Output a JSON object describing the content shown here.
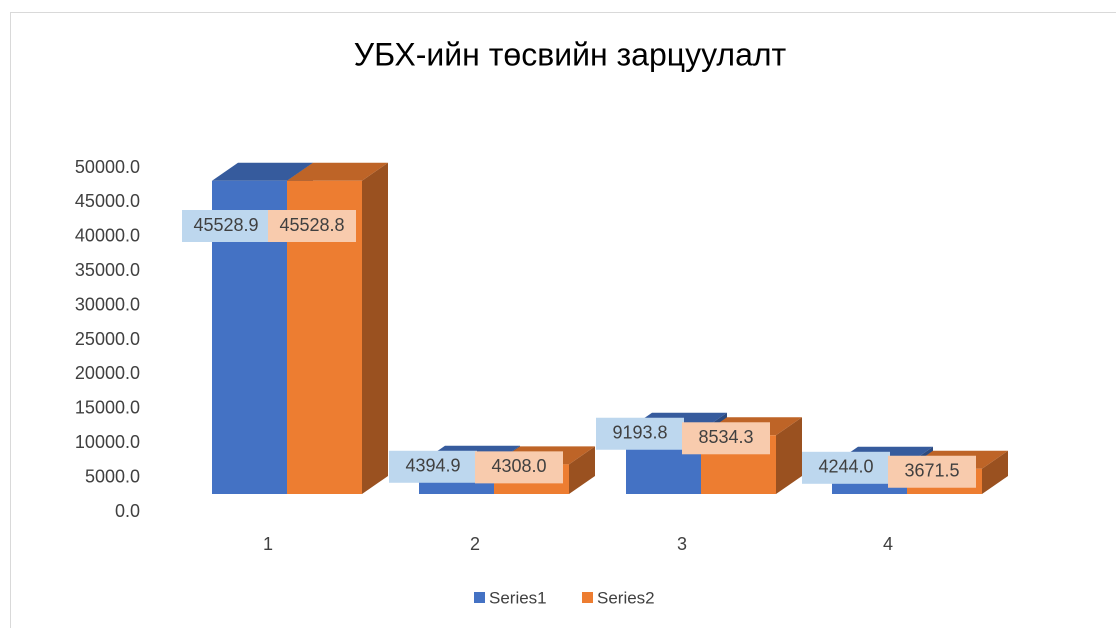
{
  "chart_data": {
    "type": "bar3d",
    "title": "УБХ-ийн төсвийн зарцуулалт",
    "categories": [
      "1",
      "2",
      "3",
      "4"
    ],
    "series": [
      {
        "name": "Series1",
        "color": "#4472c4",
        "values": [
          45528.9,
          4394.9,
          9193.8,
          4244.0
        ],
        "value_labels": [
          "45528.9",
          "4394.9",
          "9193.8",
          "4244.0"
        ]
      },
      {
        "name": "Series2",
        "color": "#ed7d31",
        "values": [
          45528.8,
          4308.0,
          8534.3,
          3671.5
        ],
        "value_labels": [
          "45528.8",
          "4308.0",
          "8534.3",
          "3671.5"
        ]
      }
    ],
    "ylim": [
      0,
      50000
    ],
    "yticks": [
      {
        "value": 0,
        "label": "0.0"
      },
      {
        "value": 5000,
        "label": "5000.0"
      },
      {
        "value": 10000,
        "label": "10000.0"
      },
      {
        "value": 15000,
        "label": "15000.0"
      },
      {
        "value": 20000,
        "label": "20000.0"
      },
      {
        "value": 25000,
        "label": "25000.0"
      },
      {
        "value": 30000,
        "label": "30000.0"
      },
      {
        "value": 35000,
        "label": "35000.0"
      },
      {
        "value": 40000,
        "label": "40000.0"
      },
      {
        "value": 45000,
        "label": "45000.0"
      },
      {
        "value": 50000,
        "label": "50000.0"
      }
    ],
    "legend": "bottom"
  }
}
